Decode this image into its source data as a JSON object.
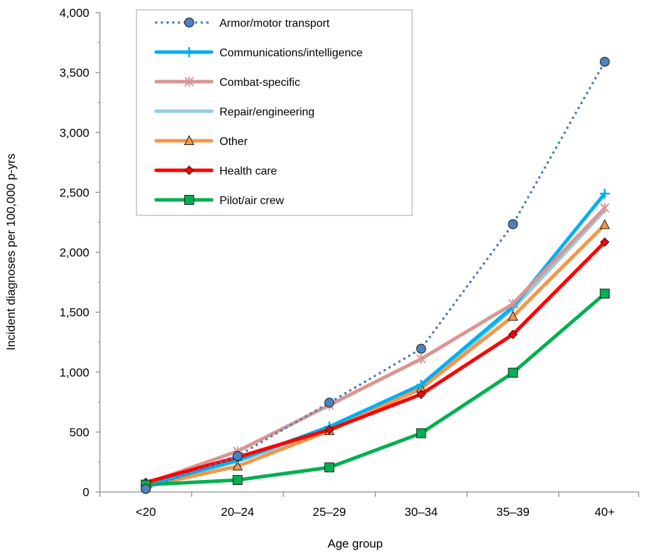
{
  "chart_data": {
    "type": "line",
    "xlabel": "Age group",
    "ylabel": "Incident diagnoses per 100,000 p-yrs",
    "ylim": [
      0,
      4000
    ],
    "yticks": [
      0,
      500,
      1000,
      1500,
      2000,
      2500,
      3000,
      3500,
      4000
    ],
    "ytick_labels": [
      "0",
      "500",
      "1,000",
      "1,500",
      "2,000",
      "2,500",
      "3,000",
      "3,500",
      "4,000"
    ],
    "categories": [
      "<20",
      "20–24",
      "25–29",
      "30–34",
      "35–39",
      "40+"
    ],
    "grid": false,
    "legend_position": "top-left",
    "series": [
      {
        "name": "Armor/motor transport",
        "values": [
          25,
          300,
          745,
          1195,
          2235,
          3590
        ],
        "color": "#4a7ebb",
        "marker": "circle",
        "marker_fill": "#4f81bd",
        "line_style": "dotted"
      },
      {
        "name": "Communications/intelligence",
        "values": [
          55,
          265,
          545,
          895,
          1545,
          2490
        ],
        "color": "#00b0f0",
        "marker": "plus",
        "marker_fill": "#00b0f0",
        "line_style": "solid"
      },
      {
        "name": "Combat-specific",
        "values": [
          70,
          340,
          725,
          1110,
          1570,
          2370
        ],
        "color": "#d99694",
        "marker": "star",
        "marker_fill": "#d99694",
        "line_style": "solid"
      },
      {
        "name": "Repair/engineering",
        "values": [
          50,
          255,
          520,
          860,
          1530,
          2350
        ],
        "color": "#93cddd",
        "marker": "none",
        "marker_fill": "#93cddd",
        "line_style": "solid"
      },
      {
        "name": "Other",
        "values": [
          45,
          215,
          510,
          865,
          1465,
          2230
        ],
        "color": "#f79646",
        "marker": "triangle",
        "marker_fill": "#f79646",
        "line_style": "solid"
      },
      {
        "name": "Health care",
        "values": [
          80,
          290,
          520,
          815,
          1315,
          2085
        ],
        "color": "#ff0000",
        "marker": "diamond",
        "marker_fill": "#ff0000",
        "line_style": "solid"
      },
      {
        "name": "Pilot/air crew",
        "values": [
          60,
          100,
          205,
          490,
          995,
          1655
        ],
        "color": "#00b050",
        "marker": "square",
        "marker_fill": "#00b050",
        "line_style": "solid"
      }
    ]
  }
}
